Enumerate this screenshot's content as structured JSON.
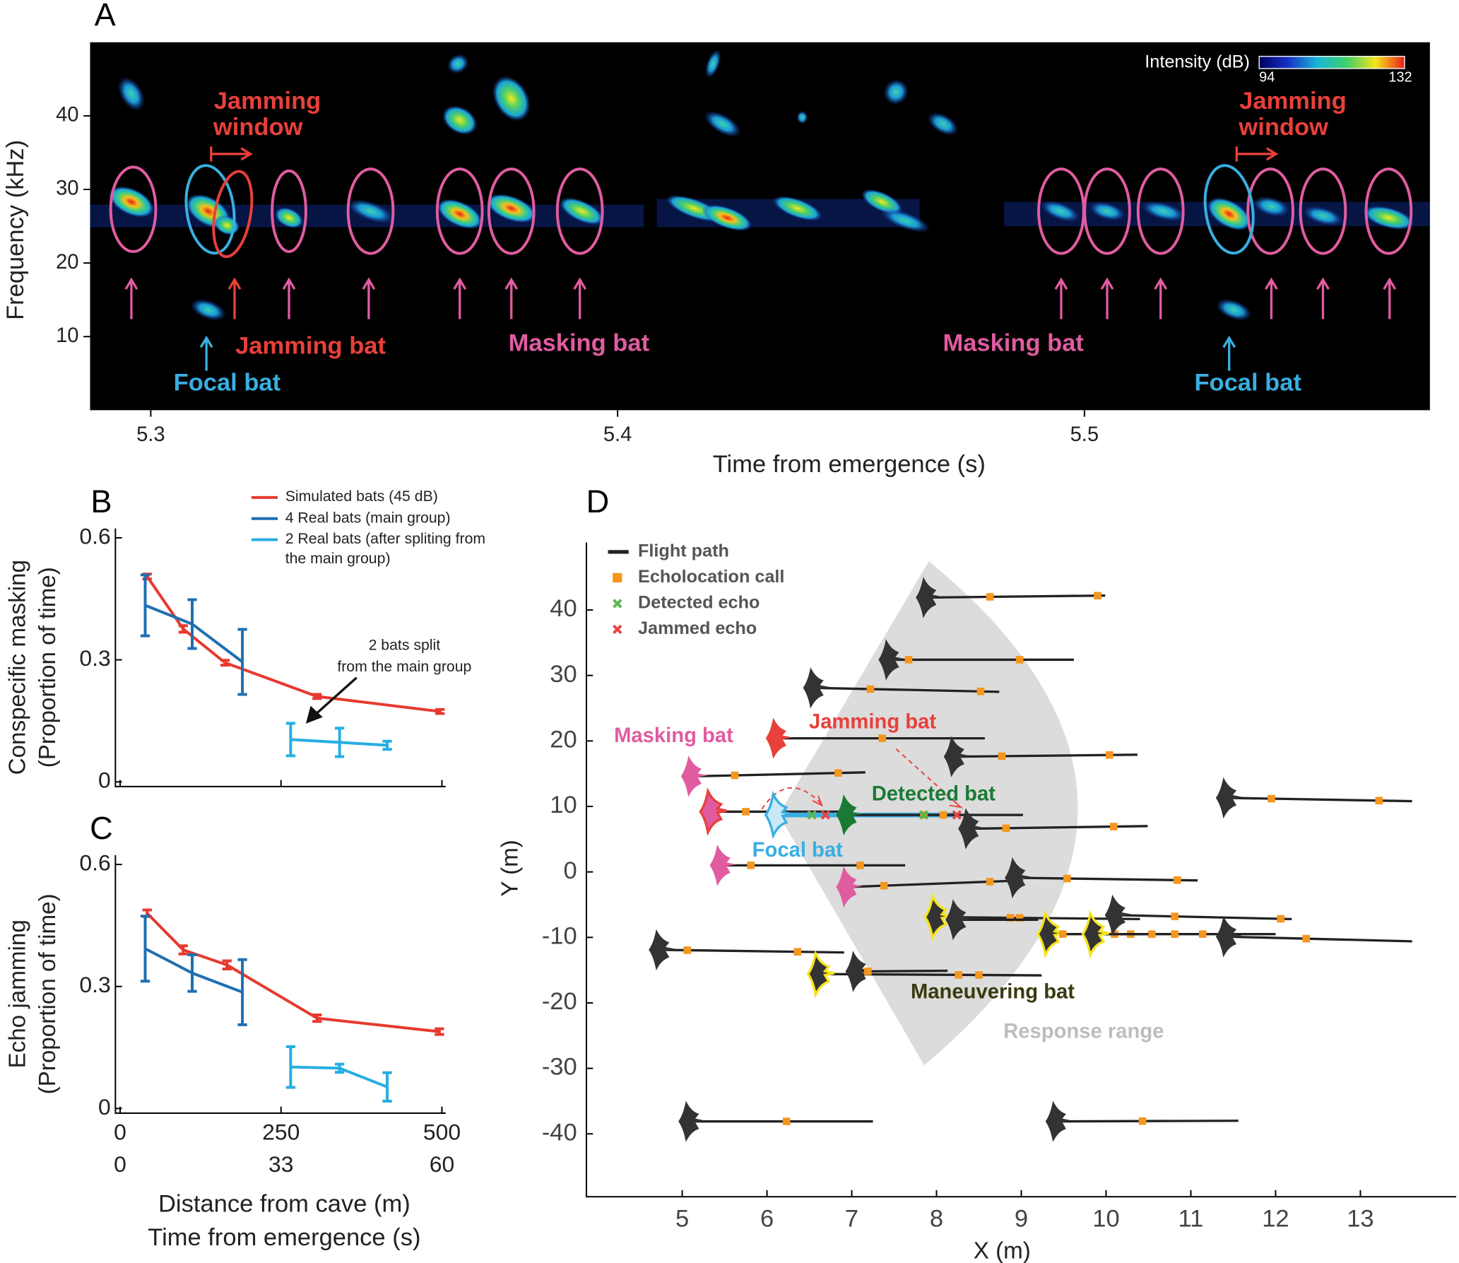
{
  "chart_data": [
    {
      "type": "spectrogram",
      "panel": "A",
      "xlabel": "Time from emergence (s)",
      "ylabel": "Frequency (kHz)",
      "xlim": [
        5.287,
        5.574
      ],
      "xticks": [
        5.3,
        5.4,
        5.5
      ],
      "ylim": [
        0,
        50
      ],
      "yticks": [
        10,
        20,
        30,
        40
      ],
      "colorbar": {
        "label": "Intensity (dB)",
        "range": [
          94,
          132
        ],
        "ticks": [
          94,
          132
        ]
      },
      "labels": [
        {
          "lines": [
            "Jamming",
            "window"
          ],
          "color": "#e8403a"
        },
        {
          "lines": [
            "Jamming",
            "window"
          ],
          "color": "#e8403a"
        },
        {
          "lines": [
            "Jamming bat"
          ],
          "color": "#e8403a"
        },
        {
          "lines": [
            "Masking bat"
          ],
          "color": "#e05ca0"
        },
        {
          "lines": [
            "Masking bat"
          ],
          "color": "#e05ca0"
        },
        {
          "lines": [
            "Focal bat"
          ],
          "color": "#39aee0"
        },
        {
          "lines": [
            "Focal bat"
          ],
          "color": "#39aee0"
        }
      ]
    },
    {
      "type": "line",
      "panel": "B",
      "ylabel": [
        "Conspecific masking",
        "(Proportion of time)"
      ],
      "xlim": [
        0,
        500
      ],
      "xticks": [
        0,
        250,
        500
      ],
      "ylim": [
        0,
        0.6
      ],
      "yticks": [
        0,
        0.3,
        0.6
      ],
      "series": [
        {
          "name": "Simulated  bats (45 dB)",
          "color": "#e8392f",
          "x": [
            42,
            98,
            163,
            306,
            497
          ],
          "values": [
            0.505,
            0.376,
            0.293,
            0.21,
            0.173
          ],
          "errors": [
            0.006,
            0.008,
            0.006,
            0.005,
            0.005
          ]
        },
        {
          "name": "4 Real bats (main group)",
          "color": "#1f6fb2",
          "x": [
            39,
            112,
            190
          ],
          "values": [
            0.434,
            0.388,
            0.295
          ],
          "errors": [
            0.075,
            0.06,
            0.08
          ]
        },
        {
          "name": "2 Real bats (after spliting from the main group)",
          "color": "#27aee3",
          "x": [
            265,
            341,
            415
          ],
          "values": [
            0.104,
            0.097,
            0.09
          ],
          "errors": [
            0.04,
            0.035,
            0.01
          ]
        }
      ],
      "annotation": [
        "2 bats split",
        "from the main group"
      ]
    },
    {
      "type": "line",
      "panel": "C",
      "ylabel": [
        "Echo jamming",
        "(Proportion of time)"
      ],
      "xlabel": [
        "Distance from cave (m)",
        "Time from emergence (s)"
      ],
      "xlim": [
        0,
        500
      ],
      "xticks": [
        0,
        250,
        500
      ],
      "xticks2": [
        {
          "value": 0,
          "label": "0"
        },
        {
          "value": 250,
          "label": "33"
        },
        {
          "value": 500,
          "label": "60"
        }
      ],
      "ylim": [
        0,
        0.6
      ],
      "yticks": [
        0,
        0.3,
        0.6
      ],
      "series": [
        {
          "color": "#e8392f",
          "x": [
            42,
            98,
            166,
            306,
            496
          ],
          "values": [
            0.48,
            0.39,
            0.353,
            0.222,
            0.189
          ],
          "errors": [
            0.008,
            0.01,
            0.01,
            0.008,
            0.007
          ]
        },
        {
          "color": "#1f6fb2",
          "x": [
            39,
            112,
            190
          ],
          "values": [
            0.393,
            0.333,
            0.286
          ],
          "errors": [
            0.08,
            0.045,
            0.08
          ]
        },
        {
          "color": "#27aee3",
          "x": [
            265,
            341,
            415
          ],
          "values": [
            0.102,
            0.099,
            0.053
          ],
          "errors": [
            0.05,
            0.01,
            0.035
          ]
        }
      ]
    },
    {
      "type": "bats",
      "panel": "D",
      "xlabel": "X (m)",
      "ylabel": "Y (m)",
      "xlim": [
        3.87,
        14.13
      ],
      "xticks": [
        5,
        6,
        7,
        8,
        9,
        10,
        11,
        12,
        13
      ],
      "ylim": [
        -49.6,
        50.3
      ],
      "yticks": [
        -40,
        -30,
        -20,
        -10,
        0,
        10,
        20,
        30,
        40
      ],
      "legend": [
        {
          "name": "Flight path",
          "color": "#222",
          "marker": "line"
        },
        {
          "name": "Echolocation call",
          "color": "#f5961f",
          "marker": "square"
        },
        {
          "name": "Detected echo",
          "color": "#5ab552",
          "marker": "x"
        },
        {
          "name": "Jammed echo",
          "color": "#e84545",
          "marker": "x"
        }
      ],
      "bats": [
        {
          "x": 7.91,
          "y": 41.9,
          "x_end": 9.99,
          "y_end": 42.2,
          "calls": [
            8.63,
            9.9
          ],
          "color": "#333"
        },
        {
          "x": 7.47,
          "y": 32.4,
          "x_end": 9.62,
          "y_end": 32.4,
          "calls": [
            7.67,
            8.98
          ],
          "color": "#333"
        },
        {
          "x": 6.58,
          "y": 28.1,
          "x_end": 8.74,
          "y_end": 27.5,
          "calls": [
            7.22,
            8.52
          ],
          "color": "#333"
        },
        {
          "x": 6.14,
          "y": 20.4,
          "x_end": 8.57,
          "y_end": 20.4,
          "calls": [
            7.36
          ],
          "color": "#e8403a"
        },
        {
          "x": 8.24,
          "y": 17.6,
          "x_end": 10.37,
          "y_end": 17.9,
          "calls": [
            8.77,
            10.04
          ],
          "color": "#333"
        },
        {
          "x": 5.14,
          "y": 14.6,
          "x_end": 7.16,
          "y_end": 15.2,
          "calls": [
            5.62,
            6.84
          ],
          "color": "#e05ca0"
        },
        {
          "x": 5.37,
          "y": 9.2,
          "x_end": 6.91,
          "y_end": 9.2,
          "calls": [
            5.75
          ],
          "color": "#e05ca0",
          "outline": "#e8403a"
        },
        {
          "x": 6.14,
          "y": 8.7,
          "x_end": 8.24,
          "y_end": 8.7,
          "calls": [],
          "color": "#c9e9f7",
          "outline": "#39aee0",
          "line": "#39aee0"
        },
        {
          "x": 6.97,
          "y": 8.7,
          "x_end": 9.02,
          "y_end": 8.7,
          "calls": [
            7.85,
            8.08
          ],
          "color": "#1a7a34"
        },
        {
          "x": 8.41,
          "y": 6.6,
          "x_end": 10.49,
          "y_end": 7.0,
          "calls": [
            8.82,
            10.09
          ],
          "color": "#333"
        },
        {
          "x": 11.45,
          "y": 11.3,
          "x_end": 13.61,
          "y_end": 10.8,
          "calls": [
            11.95,
            13.22
          ],
          "color": "#333"
        },
        {
          "x": 5.48,
          "y": 1.0,
          "x_end": 7.63,
          "y_end": 1.0,
          "calls": [
            5.81,
            7.1
          ],
          "color": "#e05ca0"
        },
        {
          "x": 6.97,
          "y": -2.3,
          "x_end": 9.02,
          "y_end": -1.3,
          "calls": [
            7.38,
            8.63
          ],
          "color": "#e05ca0"
        },
        {
          "x": 8.96,
          "y": -0.9,
          "x_end": 11.08,
          "y_end": -1.3,
          "calls": [
            9.54,
            10.84
          ],
          "color": "#333"
        },
        {
          "x": 8.02,
          "y": -6.9,
          "x_end": 10.4,
          "y_end": -7.2,
          "calls": [
            8.87,
            8.98
          ],
          "color": "#333",
          "outline": "#f5e31b"
        },
        {
          "x": 8.26,
          "y": -7.3,
          "x_end": 9.2,
          "y_end": -7.3,
          "calls": [],
          "color": "#333"
        },
        {
          "x": 9.35,
          "y": -9.5,
          "x_end": 12.0,
          "y_end": -9.5,
          "calls": [
            9.49,
            10.1,
            10.29,
            10.54,
            10.81,
            11.14
          ],
          "color": "#333",
          "outline": "#f5e31b"
        },
        {
          "x": 9.88,
          "y": -9.5,
          "x_end": 10.5,
          "y_end": -9.5,
          "calls": [],
          "color": "#333",
          "outline": "#f5e31b"
        },
        {
          "x": 10.14,
          "y": -6.6,
          "x_end": 12.19,
          "y_end": -7.2,
          "calls": [
            10.81,
            12.06
          ],
          "color": "#333"
        },
        {
          "x": 11.45,
          "y": -9.9,
          "x_end": 13.61,
          "y_end": -10.6,
          "calls": [
            12.36
          ],
          "color": "#333"
        },
        {
          "x": 4.76,
          "y": -11.9,
          "x_end": 6.91,
          "y_end": -12.3,
          "calls": [
            5.06,
            6.36
          ],
          "color": "#333"
        },
        {
          "x": 6.64,
          "y": -15.6,
          "x_end": 9.24,
          "y_end": -15.8,
          "calls": [
            8.26,
            8.5
          ],
          "color": "#333",
          "outline": "#f5e31b"
        },
        {
          "x": 7.08,
          "y": -15.2,
          "x_end": 8.13,
          "y_end": -15.1,
          "calls": [
            7.19
          ],
          "color": "#333"
        },
        {
          "x": 5.11,
          "y": -38.1,
          "x_end": 7.25,
          "y_end": -38.1,
          "calls": [
            6.23
          ],
          "color": "#333"
        },
        {
          "x": 9.44,
          "y": -38.1,
          "x_end": 11.56,
          "y_end": -38.0,
          "calls": [
            10.43
          ],
          "color": "#333"
        }
      ],
      "detected_echoes": {
        "x": [
          6.53,
          7.85
        ],
        "y": [
          8.7,
          8.7
        ]
      },
      "jammed_echoes": {
        "x": [
          6.69,
          8.24
        ],
        "y": [
          8.7,
          8.7
        ]
      },
      "labels": [
        {
          "text": "Masking bat",
          "color": "#e05ca0"
        },
        {
          "text": "Jamming bat",
          "color": "#e8403a"
        },
        {
          "text": "Detected bat",
          "color": "#1a7a34"
        },
        {
          "text": "Focal bat",
          "color": "#39aee0"
        },
        {
          "text": "Maneuvering bat",
          "color": "#3a3a10"
        },
        {
          "text": "Response range",
          "color": "#bdbdbd"
        }
      ]
    }
  ]
}
